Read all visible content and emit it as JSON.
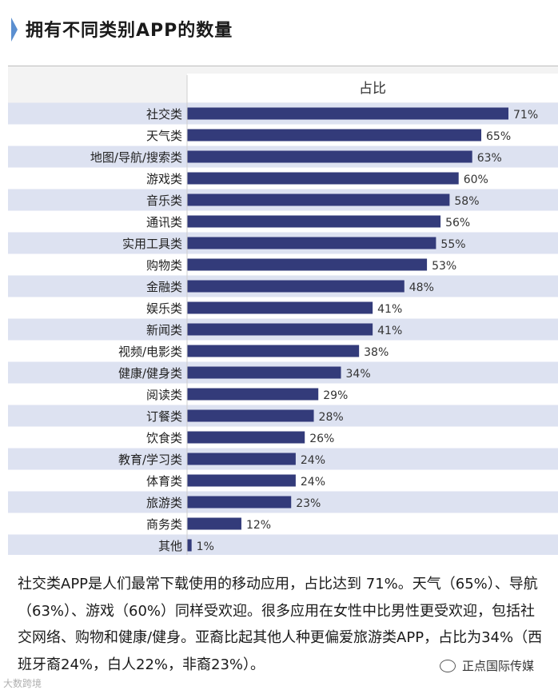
{
  "header": {
    "title": "拥有不同类别APP的数量"
  },
  "chart_data": {
    "type": "bar",
    "orientation": "horizontal",
    "title": "占比",
    "xlim": [
      0,
      75
    ],
    "grid": false,
    "categories": [
      "社交类",
      "天气类",
      "地图/导航/搜索类",
      "游戏类",
      "音乐类",
      "通讯类",
      "实用工具类",
      "购物类",
      "金融类",
      "娱乐类",
      "新闻类",
      "视频/电影类",
      "健康/健身类",
      "阅读类",
      "订餐类",
      "饮食类",
      "教育/学习类",
      "体育类",
      "旅游类",
      "商务类",
      "其他"
    ],
    "values": [
      71,
      65,
      63,
      60,
      58,
      56,
      55,
      53,
      48,
      41,
      41,
      38,
      34,
      29,
      28,
      26,
      24,
      24,
      23,
      12,
      1
    ],
    "labels": [
      "71%",
      "65%",
      "63%",
      "60%",
      "58%",
      "56%",
      "55%",
      "53%",
      "48%",
      "41%",
      "41%",
      "38%",
      "34%",
      "29%",
      "28%",
      "26%",
      "24%",
      "24%",
      "23%",
      "12%",
      "1%"
    ],
    "bar_color": "#333b7a",
    "band_color": "#dde2f1"
  },
  "caption": "社交类APP是人们最常下载使用的移动应用，占比达到 71%。天气（65%）、导航（63%）、游戏（60%）同样受欢迎。很多应用在女性中比男性更受欢迎，包括社交网络、购物和健康/健身。亚裔比起其他人种更偏爱旅游类APP，占比为34%（西班牙裔24%，白人22%，非裔23%）。",
  "watermark_left": "大数跨境",
  "watermark_right": "正点国际传媒"
}
